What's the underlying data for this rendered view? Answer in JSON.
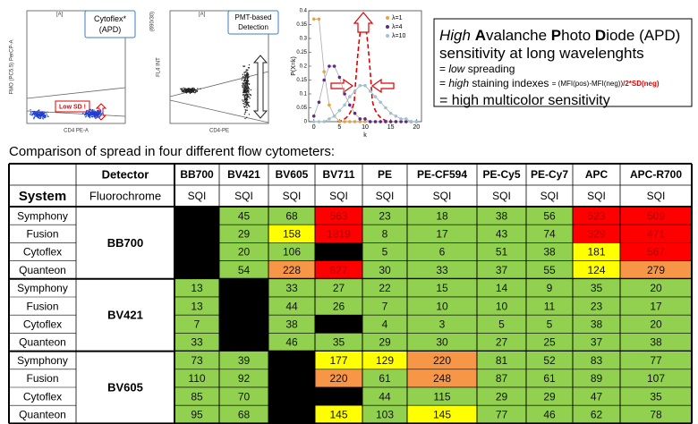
{
  "plot1": {
    "label": "[A]",
    "ylabel": "FMO (PC5.5) PerCP-A",
    "xlabel": "CD4 PE-A",
    "callout": "Cytoflex* (APD)",
    "note": "Low SD !"
  },
  "plot2": {
    "label": "[A]",
    "ytop": "(690/30)",
    "ylabel": "FL4 INT",
    "xlabel": "CD4-PE",
    "callout": "PMT-based Detection"
  },
  "poisson": {
    "type": "line",
    "xlabel": "k",
    "ylabel": "P(X=k)",
    "x": [
      0,
      1,
      2,
      3,
      4,
      5,
      6,
      7,
      8,
      9,
      10,
      11,
      12,
      13,
      14,
      15,
      16,
      17,
      18,
      19,
      20
    ],
    "xlim": [
      -1,
      21
    ],
    "xticks": [
      0,
      5,
      10,
      15,
      20
    ],
    "ylim": [
      0,
      0.4
    ],
    "yticks": [
      0,
      0.05,
      0.1,
      0.15,
      0.2,
      0.25,
      0.3,
      0.35,
      0.4
    ],
    "series": [
      {
        "name": "λ=1",
        "color": "#e8a33a",
        "values": [
          0.37,
          0.37,
          0.18,
          0.06,
          0.02,
          0,
          0,
          0,
          0,
          0,
          0,
          0,
          0,
          0,
          0,
          0,
          0,
          0,
          0,
          0,
          0
        ]
      },
      {
        "name": "λ=4",
        "color": "#5b2a86",
        "values": [
          0.02,
          0.07,
          0.15,
          0.2,
          0.2,
          0.16,
          0.1,
          0.06,
          0.03,
          0.01,
          0.01,
          0,
          0,
          0,
          0,
          0,
          0,
          0,
          0,
          0,
          0
        ]
      },
      {
        "name": "λ=10",
        "color": "#9cc3d2",
        "values": [
          0,
          0,
          0,
          0.01,
          0.02,
          0.04,
          0.06,
          0.09,
          0.11,
          0.13,
          0.13,
          0.11,
          0.09,
          0.07,
          0.05,
          0.03,
          0.02,
          0.01,
          0.01,
          0,
          0
        ]
      }
    ]
  },
  "textbox": {
    "lines": [
      [
        {
          "text": "High",
          "italic": true
        },
        {
          "text": " "
        },
        {
          "text": "A",
          "bold": true
        },
        {
          "text": "valanche "
        },
        {
          "text": "P",
          "bold": true
        },
        {
          "text": "hoto "
        },
        {
          "text": "D",
          "bold": true
        },
        {
          "text": "iode (APD)"
        }
      ],
      [
        {
          "text": "sensitivity at long wavelenghts"
        }
      ],
      [
        {
          "text": "= "
        },
        {
          "text": "low",
          "italic": true
        },
        {
          "text": " spreading"
        }
      ],
      [
        {
          "text": "= "
        },
        {
          "text": "high",
          "italic": true
        },
        {
          "text": " staining indexes "
        },
        {
          "text": "= (MFI(pos)-MFI(neg))",
          "small": true
        },
        {
          "text": "/2*SD(neg)",
          "small": true,
          "bold": true,
          "color": "#e00000"
        }
      ],
      [
        {
          "text": "= high multicolor sensitivity"
        }
      ]
    ]
  },
  "caption": "Comparison of spread in four different flow cytometers:",
  "table": {
    "header": [
      "Detector",
      "BB700",
      "BV421",
      "BV605",
      "BV711",
      "PE",
      "PE-CF594",
      "PE-Cy5",
      "PE-Cy7",
      "APC",
      "APC-R700"
    ],
    "subheader": [
      "System",
      "Fluorochrome",
      "SQI",
      "SQI",
      "SQI",
      "SQI",
      "SQI",
      "SQI",
      "SQI",
      "SQI",
      "SQI",
      "SQI"
    ],
    "groups": [
      {
        "detector": "BB700",
        "rows": [
          {
            "system": "Symphony",
            "values": [
              null,
              45,
              68,
              563,
              23,
              18,
              38,
              56,
              523,
              509
            ],
            "colors": [
              "#000000",
              "#92d050",
              "#92d050",
              "#ff0000",
              "#92d050",
              "#92d050",
              "#92d050",
              "#92d050",
              "#ff0000",
              "#ff0000"
            ]
          },
          {
            "system": "Fusion",
            "values": [
              null,
              29,
              158,
              1819,
              8,
              17,
              43,
              74,
              329,
              471
            ],
            "colors": [
              "#000000",
              "#92d050",
              "#ffff00",
              "#ff0000",
              "#92d050",
              "#92d050",
              "#92d050",
              "#92d050",
              "#ff0000",
              "#ff0000"
            ]
          },
          {
            "system": "Cytoflex",
            "values": [
              null,
              20,
              106,
              null,
              5,
              6,
              51,
              38,
              181,
              567
            ],
            "colors": [
              "#000000",
              "#92d050",
              "#92d050",
              "#000000",
              "#92d050",
              "#92d050",
              "#92d050",
              "#92d050",
              "#ffff00",
              "#ff0000"
            ]
          },
          {
            "system": "Quanteon",
            "values": [
              null,
              54,
              228,
              827,
              30,
              33,
              37,
              55,
              124,
              279
            ],
            "colors": [
              "#000000",
              "#92d050",
              "#f79646",
              "#ff0000",
              "#92d050",
              "#92d050",
              "#92d050",
              "#92d050",
              "#ffff00",
              "#f79646"
            ]
          }
        ]
      },
      {
        "detector": "BV421",
        "rows": [
          {
            "system": "Symphony",
            "values": [
              13,
              null,
              33,
              27,
              22,
              15,
              14,
              9,
              35,
              20
            ],
            "colors": [
              "#92d050",
              "#000000",
              "#92d050",
              "#92d050",
              "#92d050",
              "#92d050",
              "#92d050",
              "#92d050",
              "#92d050",
              "#92d050"
            ]
          },
          {
            "system": "Fusion",
            "values": [
              13,
              null,
              44,
              26,
              7,
              10,
              10,
              11,
              23,
              17
            ],
            "colors": [
              "#92d050",
              "#000000",
              "#92d050",
              "#92d050",
              "#92d050",
              "#92d050",
              "#92d050",
              "#92d050",
              "#92d050",
              "#92d050"
            ]
          },
          {
            "system": "Cytoflex",
            "values": [
              7,
              null,
              38,
              null,
              4,
              3,
              5,
              5,
              38,
              20
            ],
            "colors": [
              "#92d050",
              "#000000",
              "#92d050",
              "#000000",
              "#92d050",
              "#92d050",
              "#92d050",
              "#92d050",
              "#92d050",
              "#92d050"
            ]
          },
          {
            "system": "Quanteon",
            "values": [
              33,
              null,
              46,
              35,
              29,
              30,
              27,
              25,
              37,
              38
            ],
            "colors": [
              "#92d050",
              "#000000",
              "#92d050",
              "#92d050",
              "#92d050",
              "#92d050",
              "#92d050",
              "#92d050",
              "#92d050",
              "#92d050"
            ]
          }
        ]
      },
      {
        "detector": "BV605",
        "rows": [
          {
            "system": "Symphony",
            "values": [
              73,
              39,
              null,
              177,
              129,
              220,
              81,
              52,
              83,
              77
            ],
            "colors": [
              "#92d050",
              "#92d050",
              "#000000",
              "#ffff00",
              "#ffff00",
              "#f79646",
              "#92d050",
              "#92d050",
              "#92d050",
              "#92d050"
            ]
          },
          {
            "system": "Fusion",
            "values": [
              110,
              92,
              null,
              220,
              61,
              248,
              87,
              61,
              89,
              107
            ],
            "colors": [
              "#92d050",
              "#92d050",
              "#000000",
              "#f79646",
              "#92d050",
              "#f79646",
              "#92d050",
              "#92d050",
              "#92d050",
              "#92d050"
            ]
          },
          {
            "system": "Cytoflex",
            "values": [
              85,
              70,
              null,
              null,
              44,
              115,
              29,
              29,
              47,
              35
            ],
            "colors": [
              "#92d050",
              "#92d050",
              "#000000",
              "#000000",
              "#92d050",
              "#92d050",
              "#92d050",
              "#92d050",
              "#92d050",
              "#92d050"
            ]
          },
          {
            "system": "Quanteon",
            "values": [
              95,
              68,
              null,
              145,
              103,
              145,
              77,
              46,
              62,
              78
            ],
            "colors": [
              "#92d050",
              "#92d050",
              "#000000",
              "#ffff00",
              "#92d050",
              "#ffff00",
              "#92d050",
              "#92d050",
              "#92d050",
              "#92d050"
            ]
          }
        ]
      }
    ]
  }
}
